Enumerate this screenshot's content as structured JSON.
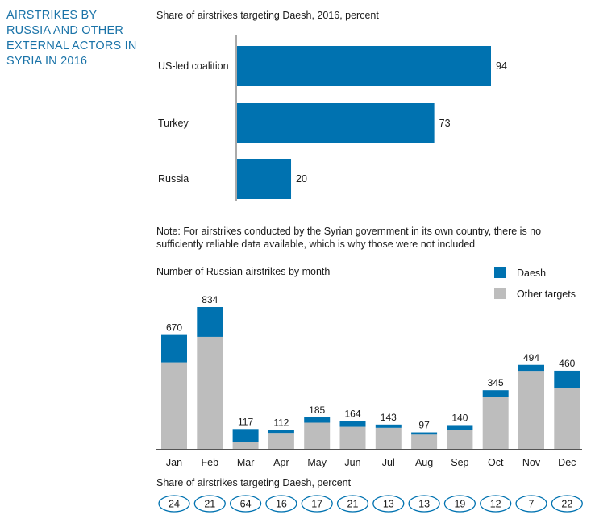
{
  "sidebar_title": "AIRSTRIKES BY\nRUSSIA AND OTHER\nEXTERNAL ACTORS IN\nSYRIA IN 2016",
  "note": "Note: For airstrikes conducted by the Syrian government in its own country, there is no sufficiently reliable data available, which is why those were not included",
  "colors": {
    "daesh": "#0072b0",
    "other": "#bdbdbd",
    "title": "#1a73a8"
  },
  "chart_data": [
    {
      "type": "bar",
      "orientation": "horizontal",
      "title": "Share of airstrikes targeting Daesh, 2016, percent",
      "categories": [
        "US-led coalition",
        "Turkey",
        "Russia"
      ],
      "values": [
        94,
        73,
        20
      ],
      "xlim": [
        0,
        100
      ],
      "grid": false
    },
    {
      "type": "bar",
      "stacked": true,
      "title": "Number of Russian airstrikes by month",
      "categories": [
        "Jan",
        "Feb",
        "Mar",
        "Apr",
        "May",
        "Jun",
        "Jul",
        "Aug",
        "Sep",
        "Oct",
        "Nov",
        "Dec"
      ],
      "totals": [
        670,
        834,
        117,
        112,
        185,
        164,
        143,
        97,
        140,
        345,
        494,
        460
      ],
      "series": [
        {
          "name": "Daesh",
          "values": [
            161,
            175,
            75,
            18,
            31,
            34,
            19,
            13,
            27,
            41,
            35,
            101
          ]
        },
        {
          "name": "Other targets",
          "values": [
            509,
            659,
            42,
            94,
            154,
            130,
            124,
            84,
            113,
            304,
            459,
            359
          ]
        }
      ],
      "legend": "top-right",
      "grid": false
    },
    {
      "type": "table",
      "title": "Share of airstrikes targeting Daesh, percent",
      "categories": [
        "Jan",
        "Feb",
        "Mar",
        "Apr",
        "May",
        "Jun",
        "Jul",
        "Aug",
        "Sep",
        "Oct",
        "Nov",
        "Dec"
      ],
      "values": [
        24,
        21,
        64,
        16,
        17,
        21,
        13,
        13,
        19,
        12,
        7,
        22
      ]
    }
  ]
}
